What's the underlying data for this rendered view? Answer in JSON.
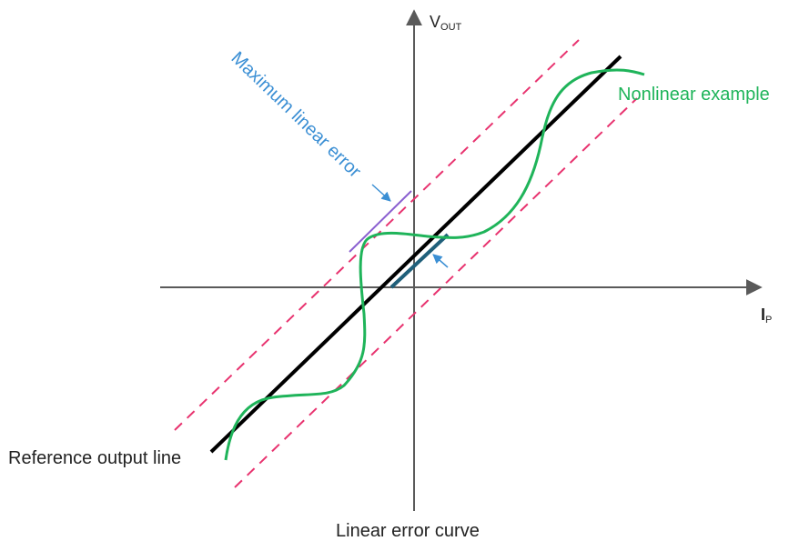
{
  "axes": {
    "y_label_main": "V",
    "y_label_sub": "OUT",
    "x_label_main": "I",
    "x_label_sub": "P"
  },
  "annotations": {
    "max_error": "Maximum linear error",
    "nonlinear": "Nonlinear example",
    "reference": "Reference output line",
    "linear_error": "Linear error curve"
  },
  "colors": {
    "axis": "#5a5a5a",
    "reference_line": "#000000",
    "nonlinear_curve": "#1fb45a",
    "error_bounds": "#e8336f",
    "max_error_label": "#3b8fd4",
    "max_error_segment": "#8a5fd0",
    "linear_error_segment": "#1f5f7a",
    "label_text": "#222222"
  }
}
